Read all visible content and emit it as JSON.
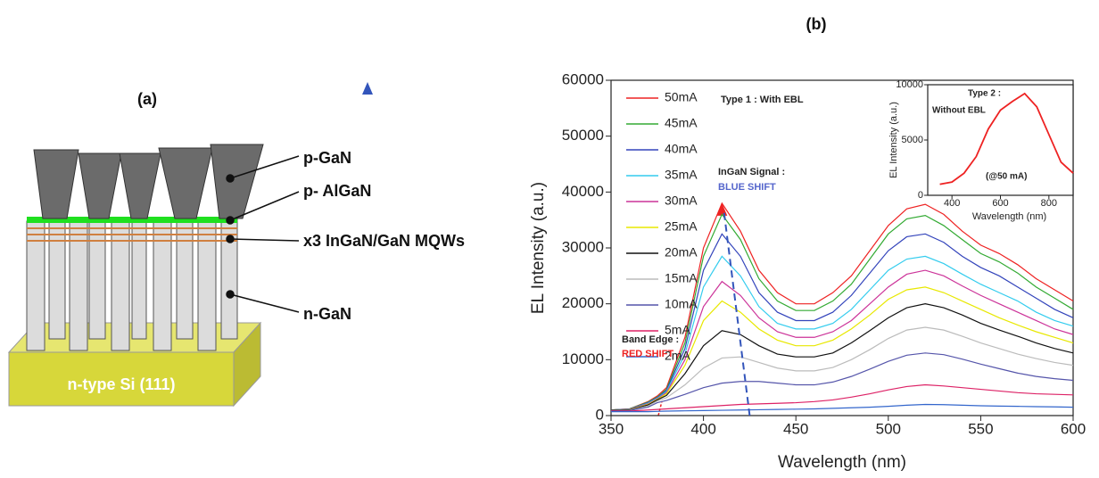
{
  "panel_a": {
    "label": "(a)",
    "layer_labels": [
      "p-GaN",
      "p- AlGaN",
      "x3 InGaN/GaN MQWs",
      "n-GaN"
    ],
    "substrate": "n-type Si (111)"
  },
  "panel_b_label": "(b)",
  "chart_data": [
    {
      "type": "line",
      "xlabel": "Wavelength (nm)",
      "ylabel": "EL Intensity (a.u.)",
      "xlim": [
        350,
        600
      ],
      "ylim": [
        0,
        60000
      ],
      "xticks": [
        350,
        400,
        450,
        500,
        550,
        600
      ],
      "yticks": [
        0,
        10000,
        20000,
        30000,
        40000,
        50000,
        60000
      ],
      "annotations": [
        "Type 1 : With EBL",
        "InGaN Signal :",
        "BLUE SHIFT",
        "Band Edge :",
        "RED SHIFT"
      ],
      "x": [
        350,
        360,
        370,
        375,
        380,
        390,
        400,
        410,
        420,
        430,
        440,
        450,
        460,
        470,
        480,
        490,
        500,
        510,
        520,
        530,
        540,
        550,
        560,
        570,
        580,
        590,
        600
      ],
      "series": [
        {
          "name": "50mA",
          "color": "#ee2222",
          "values": [
            1000,
            1200,
            2500,
            3500,
            5000,
            14000,
            30000,
            38000,
            33000,
            26000,
            22000,
            20000,
            20000,
            22000,
            25000,
            29500,
            34000,
            37000,
            37800,
            36000,
            33000,
            30500,
            29000,
            27000,
            24500,
            22500,
            20500
          ]
        },
        {
          "name": "45mA",
          "color": "#33aa33",
          "values": [
            1000,
            1200,
            2400,
            3300,
            4700,
            13000,
            28500,
            36000,
            31500,
            24500,
            20500,
            18800,
            18800,
            20500,
            23500,
            28000,
            32500,
            35200,
            35800,
            34000,
            31500,
            29000,
            27500,
            25500,
            23000,
            21000,
            19000
          ]
        },
        {
          "name": "40mA",
          "color": "#3344bb",
          "values": [
            1000,
            1150,
            2300,
            3200,
            4500,
            12000,
            26000,
            32500,
            28500,
            22000,
            18500,
            17000,
            17000,
            18500,
            21500,
            25500,
            29500,
            32000,
            32500,
            31000,
            28500,
            26500,
            25000,
            23000,
            21000,
            19000,
            17500
          ]
        },
        {
          "name": "35mA",
          "color": "#33ccee",
          "values": [
            1000,
            1100,
            2200,
            3100,
            4300,
            11000,
            23000,
            28500,
            25000,
            19500,
            16500,
            15500,
            15500,
            16500,
            19000,
            22500,
            26000,
            28000,
            28500,
            27200,
            25300,
            23500,
            22000,
            20500,
            18500,
            17000,
            16000
          ]
        },
        {
          "name": "30mA",
          "color": "#cc3399",
          "values": [
            1000,
            1100,
            2100,
            3000,
            4100,
            10000,
            19500,
            24000,
            21500,
            17500,
            15000,
            14000,
            14000,
            15000,
            17000,
            20000,
            23000,
            25300,
            26000,
            25000,
            23200,
            21500,
            20000,
            18500,
            17000,
            15500,
            14500
          ]
        },
        {
          "name": "25mA",
          "color": "#e8e800",
          "values": [
            1000,
            1050,
            2000,
            2900,
            3900,
            9000,
            17000,
            20500,
            18500,
            15500,
            13500,
            12500,
            12500,
            13500,
            15500,
            18000,
            20800,
            22500,
            23000,
            22000,
            20500,
            19000,
            17500,
            16200,
            15000,
            14000,
            13000
          ]
        },
        {
          "name": "20mA",
          "color": "#111111",
          "values": [
            1000,
            1000,
            1900,
            2800,
            3600,
            7500,
            12500,
            15200,
            14500,
            12500,
            11000,
            10500,
            10500,
            11200,
            13000,
            15200,
            17500,
            19300,
            20000,
            19300,
            18000,
            16500,
            15300,
            14200,
            13000,
            12000,
            11200
          ]
        },
        {
          "name": "15mA",
          "color": "#bbbbbb",
          "values": [
            900,
            950,
            1700,
            2600,
            3200,
            5500,
            8500,
            10300,
            10500,
            9500,
            8500,
            8000,
            8000,
            8600,
            10000,
            11800,
            13800,
            15300,
            15800,
            15300,
            14200,
            13000,
            12000,
            11000,
            10200,
            9500,
            9000
          ]
        },
        {
          "name": "10mA",
          "color": "#5555aa",
          "values": [
            900,
            900,
            1500,
            2300,
            2700,
            3800,
            5000,
            5800,
            6100,
            6100,
            5800,
            5500,
            5500,
            6000,
            7000,
            8300,
            9700,
            10800,
            11200,
            10900,
            10100,
            9200,
            8400,
            7600,
            7000,
            6600,
            6300
          ]
        },
        {
          "name": "5mA",
          "color": "#dd2266",
          "values": [
            800,
            800,
            1000,
            1100,
            1200,
            1400,
            1600,
            1800,
            2000,
            2100,
            2200,
            2300,
            2500,
            2800,
            3300,
            3900,
            4600,
            5200,
            5500,
            5300,
            5000,
            4700,
            4400,
            4100,
            3900,
            3800,
            3700
          ]
        },
        {
          "name": "2mA",
          "color": "#3366cc",
          "values": [
            700,
            700,
            700,
            750,
            800,
            850,
            900,
            950,
            1000,
            1050,
            1100,
            1150,
            1200,
            1300,
            1400,
            1500,
            1650,
            1850,
            2000,
            1950,
            1850,
            1750,
            1700,
            1650,
            1600,
            1550,
            1500
          ]
        }
      ]
    },
    {
      "type": "line",
      "xlabel": "Wavelength (nm)",
      "ylabel": "EL Intensity (a.u.)",
      "xlim": [
        300,
        900
      ],
      "ylim": [
        0,
        10000
      ],
      "xticks": [
        400,
        600,
        800
      ],
      "yticks": [
        0,
        5000,
        10000
      ],
      "annotations": [
        "Type 2 :",
        "Without EBL",
        "(@50 mA)"
      ],
      "x": [
        350,
        400,
        450,
        500,
        550,
        600,
        650,
        700,
        750,
        800,
        850,
        900
      ],
      "series": [
        {
          "color": "#ee2222",
          "values": [
            1000,
            1200,
            2000,
            3500,
            6000,
            7700,
            8500,
            9200,
            8000,
            5500,
            3000,
            2000
          ]
        }
      ]
    }
  ]
}
